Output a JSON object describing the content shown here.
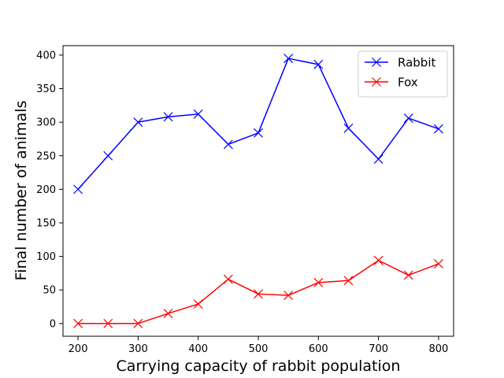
{
  "chart_data": {
    "type": "line",
    "title": "",
    "xlabel": "Carrying capacity of rabbit population",
    "ylabel": "Final number of animals",
    "x": [
      200,
      250,
      300,
      350,
      400,
      450,
      500,
      550,
      600,
      650,
      700,
      750,
      800
    ],
    "xlim": [
      175,
      825
    ],
    "ylim": [
      -19,
      414
    ],
    "xticks": [
      200,
      300,
      400,
      500,
      600,
      700,
      800
    ],
    "yticks": [
      0,
      50,
      100,
      150,
      200,
      250,
      300,
      350,
      400
    ],
    "grid": false,
    "legend_position": "top-right",
    "series": [
      {
        "name": "Rabbit",
        "color": "#0000ff",
        "marker": "x",
        "values": [
          200,
          250,
          300,
          308,
          312,
          267,
          284,
          395,
          386,
          291,
          245,
          306,
          290
        ]
      },
      {
        "name": "Fox",
        "color": "#ff0000",
        "marker": "x",
        "values": [
          0,
          0,
          0,
          15,
          29,
          66,
          44,
          42,
          61,
          64,
          94,
          72,
          89
        ]
      }
    ]
  }
}
